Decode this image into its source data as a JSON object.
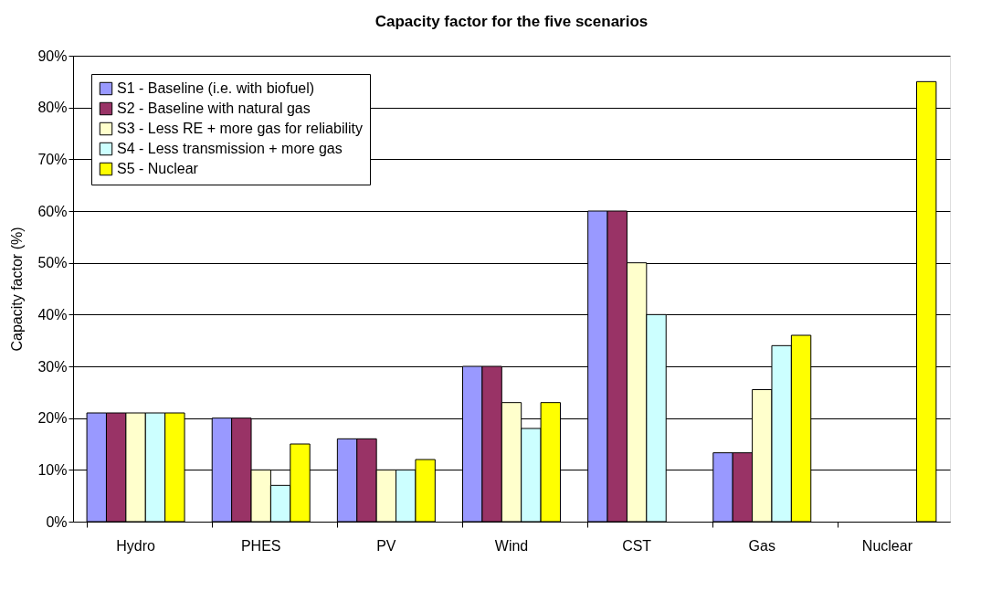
{
  "chart_data": {
    "type": "bar",
    "title": "Capacity factor for the five scenarios",
    "ylabel": "Capacity factor (%)",
    "categories": [
      "Hydro",
      "PHES",
      "PV",
      "Wind",
      "CST",
      "Gas",
      "Nuclear"
    ],
    "series": [
      {
        "name": "S1 - Baseline (i.e. with biofuel)",
        "color": "#9999ff",
        "values": [
          21,
          20,
          16,
          30,
          60,
          13.3,
          null
        ]
      },
      {
        "name": "S2 - Baseline with natural gas",
        "color": "#993366",
        "values": [
          21,
          20,
          16,
          30,
          60,
          13.3,
          null
        ]
      },
      {
        "name": "S3 - Less RE + more gas for reliability",
        "color": "#ffffcc",
        "values": [
          21,
          10,
          10,
          23,
          50,
          25.5,
          null
        ]
      },
      {
        "name": "S4 - Less transmission + more gas",
        "color": "#ccffff",
        "values": [
          21,
          7,
          10,
          18,
          40,
          34,
          null
        ]
      },
      {
        "name": "S5 - Nuclear",
        "color": "#ffff00",
        "values": [
          21,
          15,
          12,
          23,
          null,
          36,
          85
        ]
      }
    ],
    "ylim": [
      0,
      90
    ],
    "yticks": [
      {
        "value": 0,
        "label": "0%"
      },
      {
        "value": 10,
        "label": "10%"
      },
      {
        "value": 20,
        "label": "20%"
      },
      {
        "value": 30,
        "label": "30%"
      },
      {
        "value": 40,
        "label": "40%"
      },
      {
        "value": 50,
        "label": "50%"
      },
      {
        "value": 60,
        "label": "60%"
      },
      {
        "value": 70,
        "label": "70%"
      },
      {
        "value": 80,
        "label": "80%"
      },
      {
        "value": 90,
        "label": "90%"
      }
    ],
    "grid": "y",
    "legend": "top left"
  }
}
